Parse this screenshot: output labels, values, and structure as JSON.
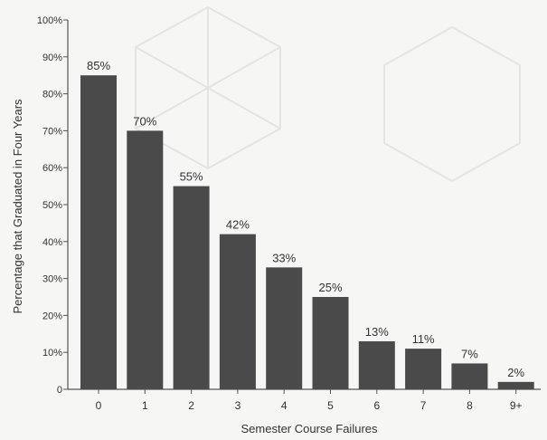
{
  "chart_data": {
    "type": "bar",
    "title": "",
    "xlabel": "Semester Course Failures",
    "ylabel": "Percentage that Graduated in Four Years",
    "ylim": [
      0,
      100
    ],
    "y_ticks": [
      "0",
      "10%",
      "20%",
      "30%",
      "40%",
      "50%",
      "60%",
      "70%",
      "80%",
      "90%",
      "100%"
    ],
    "categories": [
      "0",
      "1",
      "2",
      "3",
      "4",
      "5",
      "6",
      "7",
      "8",
      "9+"
    ],
    "values": [
      85,
      70,
      55,
      42,
      33,
      25,
      13,
      11,
      7,
      2
    ],
    "value_labels": [
      "85%",
      "70%",
      "55%",
      "42%",
      "33%",
      "25%",
      "13%",
      "11%",
      "7%",
      "2%"
    ],
    "grid": false,
    "legend": "none",
    "colors": {
      "bar": "#4a4a4a",
      "axis": "#555555",
      "text": "#333333",
      "background": "#f6f6f4"
    }
  }
}
